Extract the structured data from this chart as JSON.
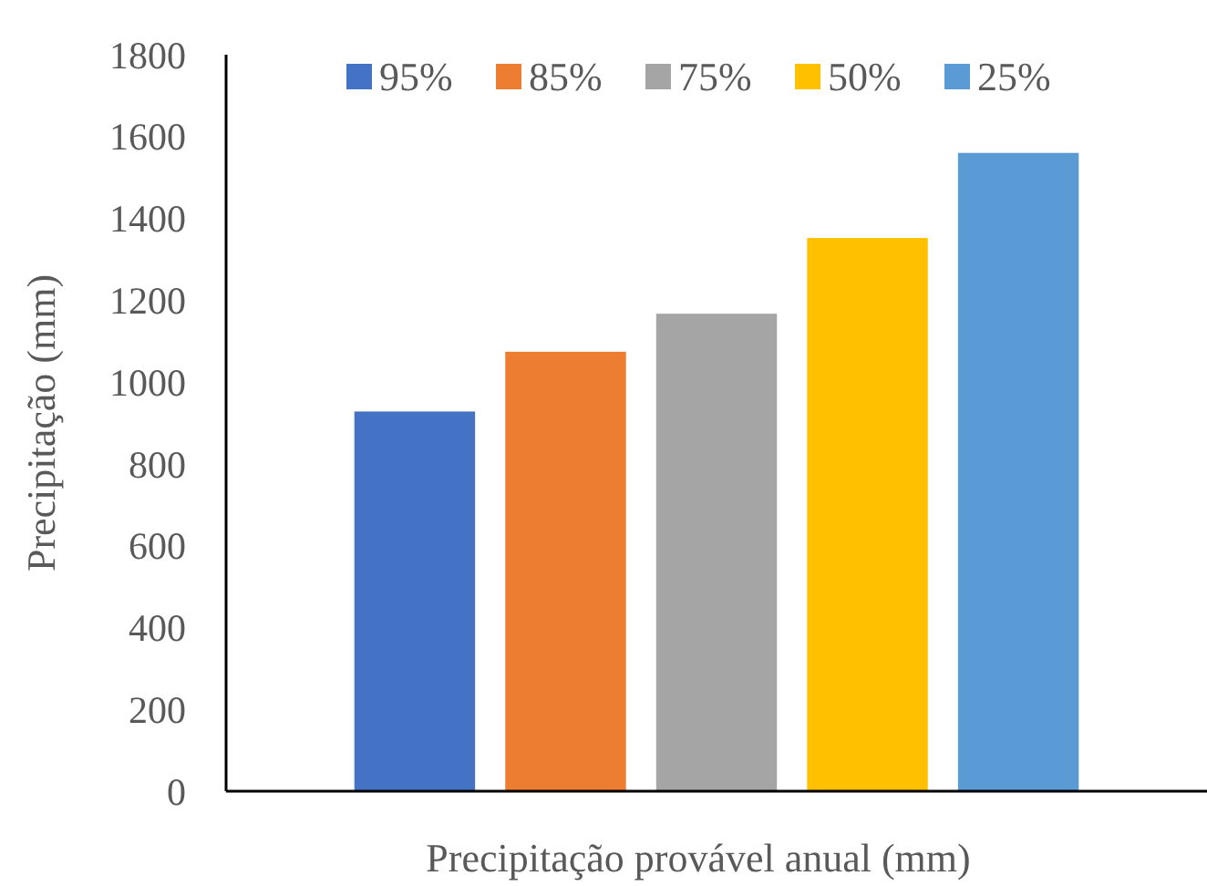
{
  "chart_data": {
    "type": "bar",
    "xlabel": "Precipitação provável anual (mm)",
    "ylabel": "Precipitação (mm)",
    "categories": [
      null
    ],
    "series": [
      {
        "name": "95%",
        "color": "#4472c4",
        "values": [
          928
        ]
      },
      {
        "name": "85%",
        "color": "#ed7d31",
        "values": [
          1074
        ]
      },
      {
        "name": "75%",
        "color": "#a5a5a5",
        "values": [
          1167
        ]
      },
      {
        "name": "50%",
        "color": "#ffc000",
        "values": [
          1352
        ]
      },
      {
        "name": "25%",
        "color": "#5b9bd5",
        "values": [
          1560
        ]
      }
    ],
    "ylim": [
      0,
      1800
    ],
    "yticks": [
      0,
      200,
      400,
      600,
      800,
      1000,
      1200,
      1400,
      1600,
      1800
    ],
    "grid": false,
    "legend": "top"
  }
}
